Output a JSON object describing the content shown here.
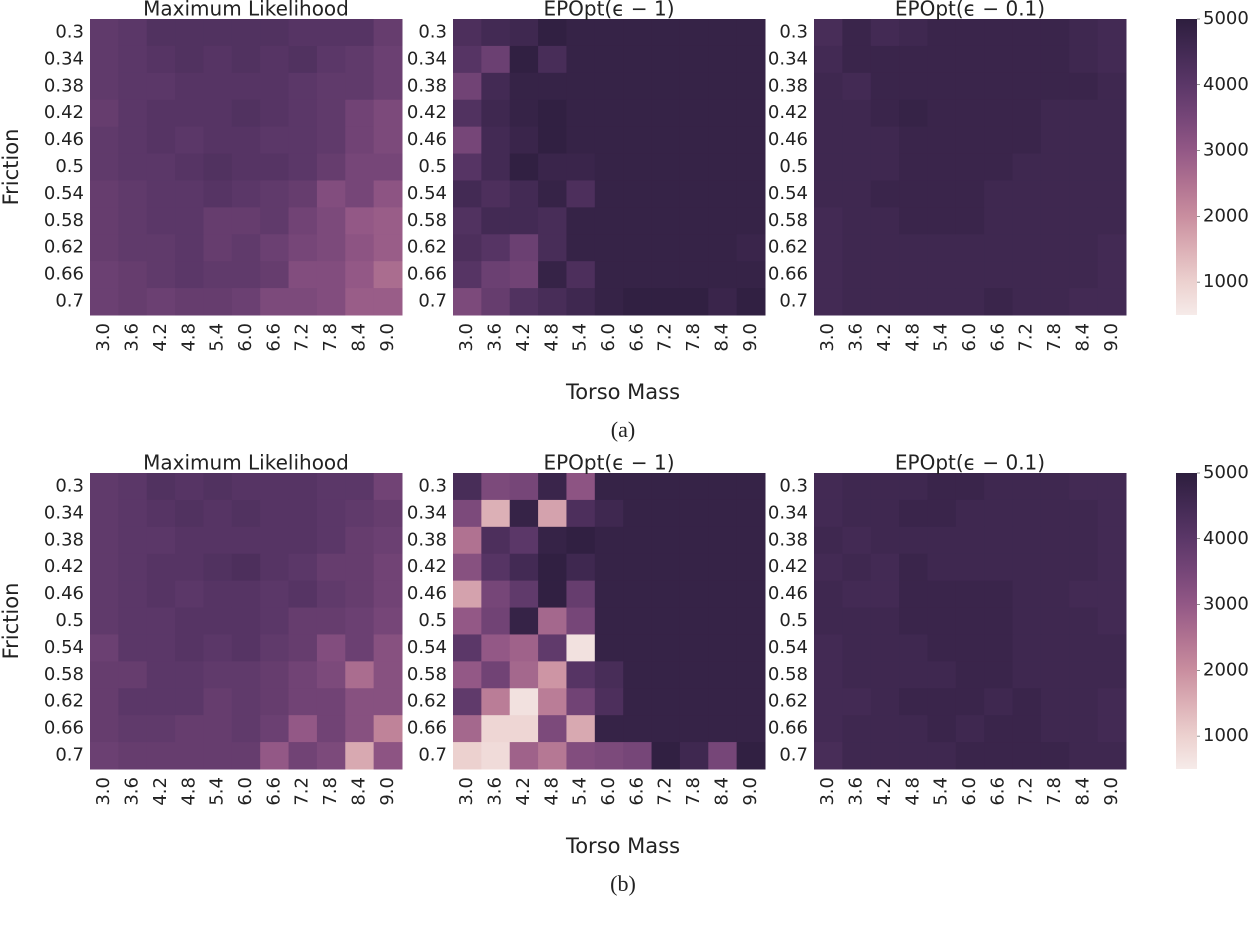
{
  "chart_data": [
    {
      "type": "heatmap",
      "title": "Maximum Likelihood",
      "ylabel": "Friction",
      "x": [
        "3.0",
        "3.6",
        "4.2",
        "4.8",
        "5.4",
        "6.0",
        "6.6",
        "7.2",
        "7.8",
        "8.4",
        "9.0"
      ],
      "y": [
        "0.3",
        "0.34",
        "0.38",
        "0.42",
        "0.46",
        "0.5",
        "0.54",
        "0.58",
        "0.62",
        "0.66",
        "0.7"
      ],
      "zlim": [
        500,
        5000
      ],
      "colormap": [
        "#f6ebe9",
        "#ecd1cf",
        "#dcb0b6",
        "#c98e9f",
        "#b07291",
        "#935886",
        "#764678",
        "#5b3768",
        "#432a54",
        "#2d1e3e"
      ],
      "values": [
        [
          3900,
          4000,
          4200,
          4200,
          4200,
          4200,
          4200,
          4100,
          4100,
          4100,
          3800
        ],
        [
          3900,
          4000,
          4100,
          4200,
          4100,
          4200,
          4100,
          4200,
          4000,
          3900,
          3700
        ],
        [
          3900,
          4000,
          4000,
          4100,
          4100,
          4100,
          4100,
          4000,
          3900,
          3900,
          3700
        ],
        [
          3800,
          4000,
          4100,
          4100,
          4100,
          4200,
          4100,
          4000,
          3900,
          3600,
          3400
        ],
        [
          3900,
          4000,
          4100,
          4000,
          4100,
          4100,
          4000,
          4000,
          3900,
          3600,
          3400
        ],
        [
          3900,
          4000,
          4000,
          4100,
          4200,
          4100,
          4100,
          4000,
          3800,
          3500,
          3500
        ],
        [
          3800,
          3900,
          4000,
          4000,
          4100,
          4000,
          3900,
          3800,
          3300,
          3500,
          3100
        ],
        [
          3800,
          3900,
          4000,
          4000,
          3800,
          3800,
          3900,
          3600,
          3400,
          3000,
          2900
        ],
        [
          3800,
          3900,
          3900,
          4000,
          3800,
          3900,
          3700,
          3500,
          3400,
          3100,
          2900
        ],
        [
          3700,
          3800,
          3900,
          4000,
          3900,
          3900,
          3800,
          3300,
          3300,
          3000,
          2600
        ],
        [
          3700,
          3800,
          3700,
          3800,
          3800,
          3700,
          3400,
          3400,
          3300,
          2900,
          2900
        ]
      ]
    },
    {
      "type": "heatmap",
      "title": "EPOpt(ϵ − 1)",
      "xlabel": "Torso Mass",
      "caption": "(a)",
      "x": [
        "3.0",
        "3.6",
        "4.2",
        "4.8",
        "5.4",
        "6.0",
        "6.6",
        "7.2",
        "7.8",
        "8.4",
        "9.0"
      ],
      "y": [
        "0.3",
        "0.34",
        "0.38",
        "0.42",
        "0.46",
        "0.5",
        "0.54",
        "0.58",
        "0.62",
        "0.66",
        "0.7"
      ],
      "zlim": [
        500,
        5000
      ],
      "colormap": [
        "#f6ebe9",
        "#ecd1cf",
        "#dcb0b6",
        "#c98e9f",
        "#b07291",
        "#935886",
        "#764678",
        "#5b3768",
        "#432a54",
        "#2d1e3e"
      ],
      "values": [
        [
          4300,
          4500,
          4600,
          4900,
          4800,
          4800,
          4800,
          4800,
          4800,
          4800,
          4800
        ],
        [
          4100,
          3700,
          4900,
          4400,
          4800,
          4800,
          4800,
          4800,
          4800,
          4800,
          4800
        ],
        [
          3600,
          4500,
          4800,
          4800,
          4800,
          4800,
          4800,
          4800,
          4800,
          4800,
          4800
        ],
        [
          4200,
          4600,
          4800,
          4900,
          4800,
          4800,
          4800,
          4800,
          4800,
          4800,
          4800
        ],
        [
          3500,
          4500,
          4700,
          4900,
          4800,
          4800,
          4800,
          4800,
          4800,
          4800,
          4800
        ],
        [
          4100,
          4500,
          4900,
          4700,
          4700,
          4800,
          4800,
          4800,
          4800,
          4800,
          4800
        ],
        [
          4500,
          4300,
          4500,
          4800,
          4300,
          4800,
          4800,
          4800,
          4800,
          4800,
          4800
        ],
        [
          4200,
          4500,
          4500,
          4400,
          4800,
          4800,
          4800,
          4800,
          4800,
          4800,
          4800
        ],
        [
          4300,
          4100,
          3700,
          4400,
          4800,
          4800,
          4800,
          4800,
          4800,
          4800,
          4700
        ],
        [
          4100,
          3700,
          3600,
          4800,
          4300,
          4800,
          4800,
          4800,
          4800,
          4800,
          4800
        ],
        [
          3400,
          3800,
          4200,
          4400,
          4600,
          4800,
          4900,
          4900,
          4900,
          4700,
          4900
        ]
      ]
    },
    {
      "type": "heatmap",
      "title": "EPOpt(ϵ − 0.1)",
      "zticks": [
        1000,
        2000,
        3000,
        4000,
        5000
      ],
      "x": [
        "3.0",
        "3.6",
        "4.2",
        "4.8",
        "5.4",
        "6.0",
        "6.6",
        "7.2",
        "7.8",
        "8.4",
        "9.0"
      ],
      "y": [
        "0.3",
        "0.34",
        "0.38",
        "0.42",
        "0.46",
        "0.5",
        "0.54",
        "0.58",
        "0.62",
        "0.66",
        "0.7"
      ],
      "zlim": [
        500,
        5000
      ],
      "colormap": [
        "#f6ebe9",
        "#ecd1cf",
        "#dcb0b6",
        "#c98e9f",
        "#b07291",
        "#935886",
        "#764678",
        "#5b3768",
        "#432a54",
        "#2d1e3e"
      ],
      "values": [
        [
          4400,
          4700,
          4500,
          4600,
          4700,
          4700,
          4700,
          4700,
          4700,
          4600,
          4500
        ],
        [
          4500,
          4700,
          4700,
          4700,
          4700,
          4700,
          4700,
          4700,
          4700,
          4600,
          4500
        ],
        [
          4600,
          4500,
          4700,
          4700,
          4700,
          4700,
          4700,
          4700,
          4700,
          4700,
          4600
        ],
        [
          4600,
          4600,
          4700,
          4800,
          4700,
          4700,
          4700,
          4700,
          4600,
          4600,
          4600
        ],
        [
          4600,
          4600,
          4600,
          4700,
          4700,
          4700,
          4700,
          4700,
          4600,
          4600,
          4600
        ],
        [
          4600,
          4600,
          4600,
          4700,
          4700,
          4700,
          4700,
          4600,
          4600,
          4600,
          4600
        ],
        [
          4600,
          4600,
          4700,
          4700,
          4700,
          4700,
          4600,
          4600,
          4600,
          4600,
          4600
        ],
        [
          4500,
          4600,
          4600,
          4700,
          4700,
          4700,
          4600,
          4600,
          4600,
          4600,
          4600
        ],
        [
          4500,
          4600,
          4600,
          4600,
          4600,
          4600,
          4600,
          4600,
          4600,
          4600,
          4500
        ],
        [
          4500,
          4600,
          4600,
          4600,
          4600,
          4600,
          4600,
          4600,
          4600,
          4600,
          4500
        ],
        [
          4500,
          4600,
          4600,
          4600,
          4600,
          4600,
          4700,
          4600,
          4600,
          4500,
          4500
        ]
      ]
    },
    {
      "type": "heatmap",
      "title": "Maximum Likelihood",
      "ylabel": "Friction",
      "x": [
        "3.0",
        "3.6",
        "4.2",
        "4.8",
        "5.4",
        "6.0",
        "6.6",
        "7.2",
        "7.8",
        "8.4",
        "9.0"
      ],
      "y": [
        "0.3",
        "0.34",
        "0.38",
        "0.42",
        "0.46",
        "0.5",
        "0.54",
        "0.58",
        "0.62",
        "0.66",
        "0.7"
      ],
      "zlim": [
        500,
        5000
      ],
      "colormap": [
        "#f6ebe9",
        "#ecd1cf",
        "#dcb0b6",
        "#c98e9f",
        "#b07291",
        "#935886",
        "#764678",
        "#5b3768",
        "#432a54",
        "#2d1e3e"
      ],
      "values": [
        [
          3900,
          4000,
          4200,
          4100,
          4200,
          4100,
          4100,
          4100,
          4000,
          4000,
          3600
        ],
        [
          3900,
          4000,
          4100,
          4200,
          4100,
          4200,
          4100,
          4100,
          4000,
          3900,
          3800
        ],
        [
          3900,
          4000,
          4000,
          4100,
          4100,
          4100,
          4100,
          4100,
          4000,
          3800,
          3700
        ],
        [
          3900,
          4000,
          4100,
          4100,
          4200,
          4300,
          4100,
          4000,
          3800,
          3800,
          3600
        ],
        [
          3900,
          4000,
          4100,
          4000,
          4100,
          4100,
          4000,
          4100,
          3900,
          3800,
          3600
        ],
        [
          3900,
          4000,
          4000,
          4100,
          4100,
          4100,
          4000,
          3800,
          3800,
          3700,
          3500
        ],
        [
          3700,
          4000,
          4000,
          4100,
          4000,
          4100,
          3900,
          3800,
          3300,
          3700,
          3200
        ],
        [
          3800,
          3800,
          4000,
          4000,
          3900,
          3900,
          3800,
          3600,
          3400,
          2600,
          3200
        ],
        [
          3800,
          4000,
          4000,
          4000,
          3800,
          3900,
          3800,
          3600,
          3600,
          3200,
          3200
        ],
        [
          3800,
          3900,
          3900,
          3800,
          3800,
          3900,
          3700,
          3000,
          3600,
          3200,
          2200
        ],
        [
          3700,
          3800,
          3800,
          3800,
          3800,
          3800,
          3000,
          3600,
          3400,
          1600,
          3100
        ]
      ]
    },
    {
      "type": "heatmap",
      "title": "EPOpt(ϵ − 1)",
      "xlabel": "Torso Mass",
      "caption": "(b)",
      "x": [
        "3.0",
        "3.6",
        "4.2",
        "4.8",
        "5.4",
        "6.0",
        "6.6",
        "7.2",
        "7.8",
        "8.4",
        "9.0"
      ],
      "y": [
        "0.3",
        "0.34",
        "0.38",
        "0.42",
        "0.46",
        "0.5",
        "0.54",
        "0.58",
        "0.62",
        "0.66",
        "0.7"
      ],
      "zlim": [
        500,
        5000
      ],
      "colormap": [
        "#f6ebe9",
        "#ecd1cf",
        "#dcb0b6",
        "#c98e9f",
        "#b07291",
        "#935886",
        "#764678",
        "#5b3768",
        "#432a54",
        "#2d1e3e"
      ],
      "values": [
        [
          4400,
          3400,
          3500,
          4700,
          3100,
          4800,
          4800,
          4800,
          4800,
          4800,
          4800
        ],
        [
          3400,
          1500,
          4800,
          1700,
          4300,
          4600,
          4800,
          4800,
          4800,
          4800,
          4800
        ],
        [
          2500,
          4300,
          4000,
          4800,
          4900,
          4800,
          4800,
          4800,
          4800,
          4800,
          4800
        ],
        [
          3200,
          4100,
          4500,
          4900,
          4600,
          4800,
          4800,
          4800,
          4800,
          4800,
          4800
        ],
        [
          1700,
          3500,
          3900,
          4900,
          3800,
          4800,
          4800,
          4800,
          4800,
          4800,
          4800
        ],
        [
          3000,
          3600,
          4800,
          2700,
          3500,
          4800,
          4800,
          4800,
          4800,
          4800,
          4800
        ],
        [
          4000,
          3000,
          2800,
          3900,
          700,
          4800,
          4800,
          4800,
          4800,
          4800,
          4800
        ],
        [
          3000,
          3600,
          2700,
          1900,
          4100,
          4400,
          4800,
          4800,
          4800,
          4800,
          4800
        ],
        [
          3900,
          2300,
          700,
          2300,
          3600,
          4300,
          4800,
          4800,
          4800,
          4800,
          4800
        ],
        [
          2700,
          900,
          900,
          3400,
          1600,
          4800,
          4800,
          4800,
          4800,
          4800,
          4800
        ],
        [
          1000,
          800,
          2800,
          2400,
          3300,
          3400,
          3500,
          4900,
          4600,
          3500,
          4900
        ]
      ]
    },
    {
      "type": "heatmap",
      "title": "EPOpt(ϵ − 0.1)",
      "zticks": [
        1000,
        2000,
        3000,
        4000,
        5000
      ],
      "x": [
        "3.0",
        "3.6",
        "4.2",
        "4.8",
        "5.4",
        "6.0",
        "6.6",
        "7.2",
        "7.8",
        "8.4",
        "9.0"
      ],
      "y": [
        "0.3",
        "0.34",
        "0.38",
        "0.42",
        "0.46",
        "0.5",
        "0.54",
        "0.58",
        "0.62",
        "0.66",
        "0.7"
      ],
      "zlim": [
        500,
        5000
      ],
      "colormap": [
        "#f6ebe9",
        "#ecd1cf",
        "#dcb0b6",
        "#c98e9f",
        "#b07291",
        "#935886",
        "#764678",
        "#5b3768",
        "#432a54",
        "#2d1e3e"
      ],
      "values": [
        [
          4500,
          4600,
          4600,
          4600,
          4700,
          4700,
          4600,
          4600,
          4600,
          4500,
          4500
        ],
        [
          4500,
          4600,
          4600,
          4700,
          4700,
          4600,
          4600,
          4600,
          4600,
          4600,
          4500
        ],
        [
          4600,
          4500,
          4600,
          4600,
          4600,
          4600,
          4600,
          4600,
          4600,
          4600,
          4500
        ],
        [
          4500,
          4600,
          4500,
          4700,
          4600,
          4600,
          4600,
          4600,
          4600,
          4600,
          4500
        ],
        [
          4600,
          4500,
          4500,
          4700,
          4700,
          4700,
          4700,
          4600,
          4600,
          4500,
          4500
        ],
        [
          4600,
          4600,
          4600,
          4700,
          4700,
          4700,
          4700,
          4600,
          4600,
          4600,
          4500
        ],
        [
          4500,
          4600,
          4600,
          4600,
          4700,
          4700,
          4700,
          4600,
          4600,
          4600,
          4600
        ],
        [
          4500,
          4600,
          4600,
          4600,
          4600,
          4700,
          4700,
          4600,
          4600,
          4600,
          4600
        ],
        [
          4500,
          4500,
          4600,
          4700,
          4700,
          4700,
          4600,
          4700,
          4600,
          4600,
          4500
        ],
        [
          4500,
          4600,
          4600,
          4600,
          4700,
          4600,
          4700,
          4700,
          4600,
          4600,
          4500
        ],
        [
          4400,
          4600,
          4600,
          4600,
          4600,
          4700,
          4700,
          4700,
          4700,
          4600,
          4600
        ]
      ]
    }
  ]
}
